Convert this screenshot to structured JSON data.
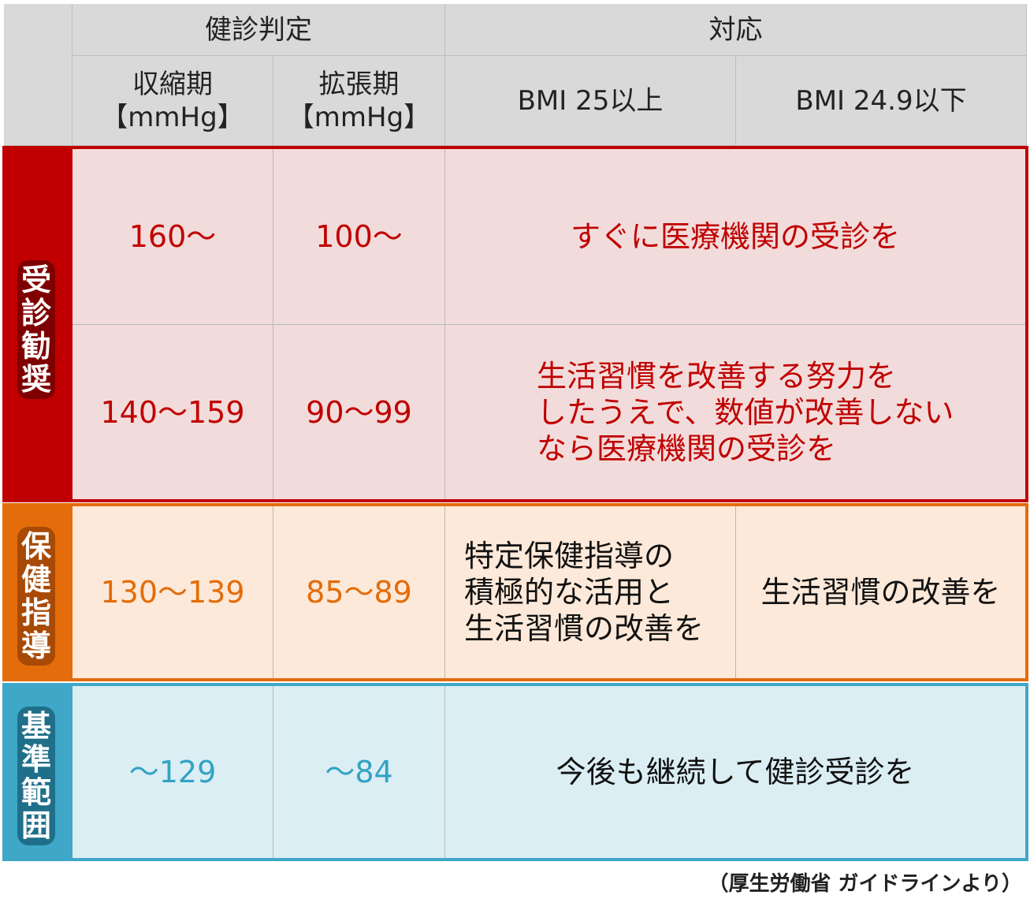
{
  "header": {
    "judgment": "健診判定",
    "response": "対応",
    "systolic": "収縮期\n【mmHg】",
    "diastolic": "拡張期\n【mmHg】",
    "bmi_over": "BMI 25以上",
    "bmi_under": "BMI 24.9以下"
  },
  "groups": [
    {
      "label": "受診勧奨",
      "color": "#c00000",
      "bg": "#f2dcdb",
      "rows": [
        {
          "systolic": "160～",
          "diastolic": "100～",
          "response": "すぐに医療機関の受診を"
        },
        {
          "systolic": "140～159",
          "diastolic": "90～99",
          "response": "生活習慣を改善する努力を\nしたうえで、数値が改善しない\nなら医療機関の受診を"
        }
      ]
    },
    {
      "label": "保健指導",
      "color": "#e46c0a",
      "bg": "#fde9d9",
      "rows": [
        {
          "systolic": "130～139",
          "diastolic": "85～89",
          "response_bmi_over": "特定保健指導の\n積極的な活用と\n生活習慣の改善を",
          "response_bmi_under": "生活習慣の改善を"
        }
      ]
    },
    {
      "label": "基準範囲",
      "color": "#3fa7c8",
      "bg": "#dbeef4",
      "rows": [
        {
          "systolic": "～129",
          "diastolic": "～84",
          "response": "今後も継続して健診受診を"
        }
      ]
    }
  ],
  "footer": "（厚生労働省 ガイドラインより）"
}
